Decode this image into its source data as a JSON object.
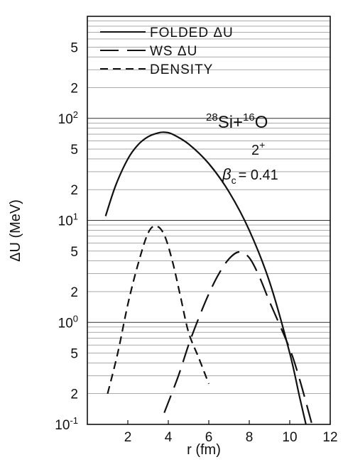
{
  "chart_data": {
    "type": "line",
    "title": "",
    "xlabel": "r (fm)",
    "ylabel": "ΔU (MeV)",
    "xscale": "linear",
    "yscale": "log",
    "xlim": [
      0,
      12
    ],
    "ylim": [
      0.1,
      1000
    ],
    "x_ticks": [
      2,
      4,
      6,
      8,
      10,
      12
    ],
    "x_tick_labels": [
      "2",
      "4",
      "6",
      "8",
      "10",
      "12"
    ],
    "y_tick_labels": [
      {
        "value": 0.1,
        "base": "10",
        "exp": "-1"
      },
      {
        "value": 0.2,
        "base": "2",
        "exp": ""
      },
      {
        "value": 0.5,
        "base": "5",
        "exp": ""
      },
      {
        "value": 1,
        "base": "10",
        "exp": "0"
      },
      {
        "value": 2,
        "base": "2",
        "exp": ""
      },
      {
        "value": 5,
        "base": "5",
        "exp": ""
      },
      {
        "value": 10,
        "base": "10",
        "exp": "1"
      },
      {
        "value": 20,
        "base": "2",
        "exp": ""
      },
      {
        "value": 50,
        "base": "5",
        "exp": ""
      },
      {
        "value": 100,
        "base": "10",
        "exp": "2"
      },
      {
        "value": 200,
        "base": "2",
        "exp": ""
      },
      {
        "value": 500,
        "base": "5",
        "exp": ""
      }
    ],
    "grid": "horizontal",
    "legend": {
      "placement": "top",
      "entries": [
        {
          "label": "FOLDED ΔU",
          "style": "solid"
        },
        {
          "label": "WS ΔU",
          "style": "long-dash"
        },
        {
          "label": "DENSITY",
          "style": "short-dash"
        }
      ]
    },
    "annotation": {
      "reaction_a": "28",
      "reaction_b": "Si",
      "reaction_plus": "+",
      "reaction_c": "16",
      "reaction_d": "O",
      "state_num": "2",
      "state_sup": "+",
      "beta_symbol": "β",
      "beta_sub": "c",
      "beta_value": "= 0.41"
    },
    "series": [
      {
        "name": "FOLDED ΔU",
        "style": "solid",
        "x": [
          0.9,
          1.4,
          2.0,
          2.5,
          3.0,
          3.5,
          3.8,
          4.2,
          5.0,
          6.0,
          7.0,
          8.0,
          9.0,
          10.0,
          10.5,
          10.8
        ],
        "y": [
          11,
          22,
          40,
          55,
          66,
          72,
          73,
          70,
          56,
          36,
          19,
          8,
          2.5,
          0.5,
          0.18,
          0.1
        ]
      },
      {
        "name": "WS ΔU",
        "style": "long-dash",
        "x": [
          3.8,
          4.5,
          5.0,
          5.5,
          6.0,
          6.5,
          7.0,
          7.5,
          8.0,
          8.5,
          9.0,
          10.0,
          10.5,
          11.1
        ],
        "y": [
          0.13,
          0.3,
          0.6,
          1.1,
          1.9,
          3.0,
          4.2,
          4.9,
          4.3,
          2.8,
          1.6,
          0.55,
          0.27,
          0.1
        ]
      },
      {
        "name": "DENSITY",
        "style": "short-dash",
        "x": [
          1.0,
          1.5,
          2.0,
          2.5,
          3.0,
          3.4,
          3.8,
          4.2,
          4.6,
          5.0,
          5.5,
          6.0
        ],
        "y": [
          0.2,
          0.5,
          1.5,
          3.7,
          7.5,
          8.8,
          7.2,
          4.0,
          1.8,
          0.8,
          0.45,
          0.25
        ]
      }
    ]
  }
}
